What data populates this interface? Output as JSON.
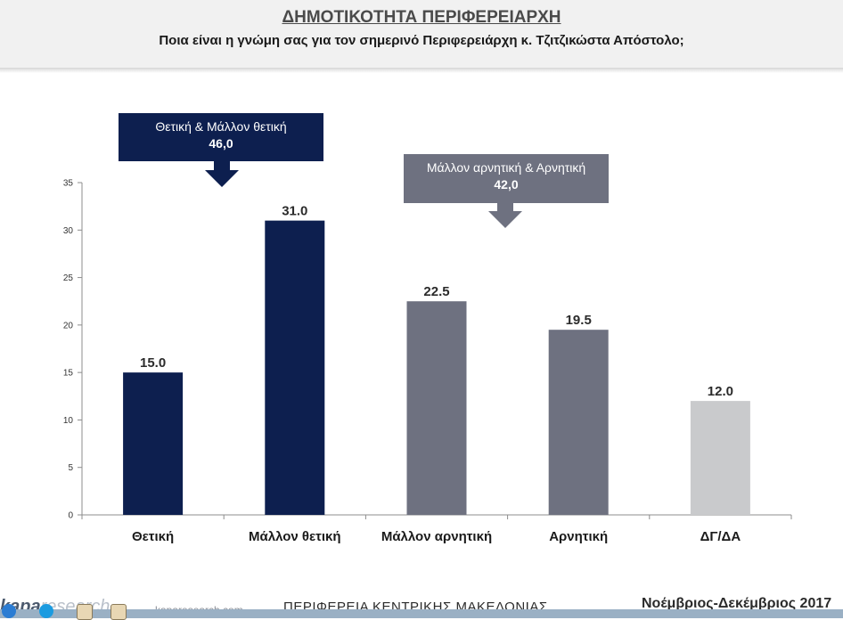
{
  "header": {
    "title": "ΔΗΜΟΤΙΚΟΤΗΤΑ ΠΕΡΙΦΕΡΕΙΑΡΧΗ",
    "subtitle": "Ποια είναι η γνώμη σας για τον σημερινό Περιφερειάρχη κ. Τζιτζικώστα Απόστολο;"
  },
  "callouts": {
    "positive": {
      "label": "Θετική & Μάλλον θετική",
      "value": "46,0"
    },
    "negative": {
      "label": "Μάλλον αρνητική & Αρνητική",
      "value": "42,0"
    }
  },
  "colors": {
    "navy": "#0d1f4f",
    "slate": "#6e7180",
    "light_gray": "#c9cacc",
    "callout_negative": "#6e7180"
  },
  "chart_data": {
    "type": "bar",
    "categories": [
      "Θετική",
      "Μάλλον θετική",
      "Μάλλον αρνητική",
      "Αρνητική",
      "ΔΓ/ΔΑ"
    ],
    "values": [
      15.0,
      31.0,
      22.5,
      19.5,
      12.0
    ],
    "value_labels": [
      "15.0",
      "31.0",
      "22.5",
      "19.5",
      "12.0"
    ],
    "bar_colors": [
      "#0d1f4f",
      "#0d1f4f",
      "#6e7180",
      "#6e7180",
      "#c9cacc"
    ],
    "ylim": [
      0,
      35
    ],
    "yticks": [
      0,
      5,
      10,
      15,
      20,
      25,
      30,
      35
    ],
    "grid": false,
    "title": "",
    "xlabel": "",
    "ylabel": ""
  },
  "footer": {
    "logo_bold": "kapa",
    "logo_light": "research",
    "site": "kaparesearch.com",
    "region": "ΠΕΡΙΦΕΡΕΙΑ ΚΕΝΤΡΙΚΗΣ ΜΑΚΕΔΟΝΙΑΣ",
    "period": "Νοέμβριος-Δεκέμβριος 2017"
  }
}
